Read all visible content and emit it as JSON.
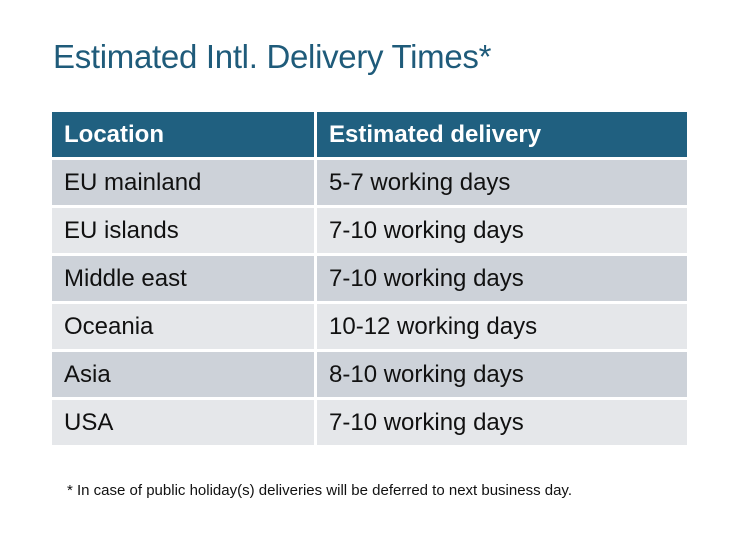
{
  "title": "Estimated Intl. Delivery Times*",
  "table": {
    "headers": [
      "Location",
      "Estimated delivery"
    ],
    "rows": [
      [
        "EU mainland",
        "5-7 working days"
      ],
      [
        "EU islands",
        "7-10 working days"
      ],
      [
        "Middle east",
        "7-10 working days"
      ],
      [
        "Oceania",
        "10-12 working days"
      ],
      [
        "Asia",
        "8-10 working days"
      ],
      [
        "USA",
        "7-10 working days"
      ]
    ]
  },
  "footnote": "* In case of public holiday(s) deliveries will be deferred to next business day.",
  "colors": {
    "header": "#206080",
    "title": "#1f5b7a",
    "row_odd": "#cdd2d9",
    "row_even": "#e5e7ea"
  }
}
